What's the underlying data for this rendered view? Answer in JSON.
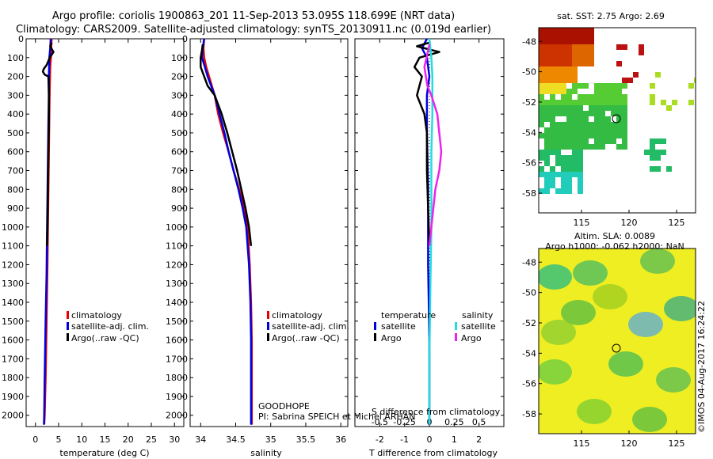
{
  "header": {
    "title_line1": "Argo profile: coriolis 1900863_201 11-Sep-2013 53.095S 118.699E (NRT data)",
    "title_line2": "Climatology: CARS2009. Satellite-adjusted climatology: synTS_20130911.nc (0.019d earlier)"
  },
  "annotations": {
    "goodhope": "GOODHOPE",
    "pi": "PI: Sabrina SPEICH et Michel ARHAN",
    "credit": "©IMOS 04-Aug-2017 16:24:22"
  },
  "colors": {
    "climatology": "#e60000",
    "satellite": "#0000dd",
    "argo": "#000000",
    "satellite_salinity": "#22dddd",
    "argo_salinity": "#ee22ee"
  },
  "chart_data": [
    {
      "type": "line",
      "id": "temperature",
      "xlabel": "temperature (deg C)",
      "ylabel": "",
      "xlim": [
        -2,
        32
      ],
      "ylim": [
        2060,
        0
      ],
      "xticks": [
        0,
        5,
        10,
        15,
        20,
        25,
        30
      ],
      "yticks": [
        0,
        100,
        200,
        300,
        400,
        500,
        600,
        700,
        800,
        900,
        1000,
        1100,
        1200,
        1300,
        1400,
        1500,
        1600,
        1700,
        1800,
        1900,
        2000
      ],
      "legend": [
        "climatology",
        "satellite-adj. clim.",
        "Argo(..raw -QC)"
      ],
      "legend_placement": "bottom-center",
      "series": [
        {
          "name": "climatology",
          "color": "#e60000",
          "points": [
            [
              3.5,
              0
            ],
            [
              3.4,
              50
            ],
            [
              3.4,
              80
            ],
            [
              3.2,
              150
            ],
            [
              3.1,
              250
            ],
            [
              3.0,
              400
            ],
            [
              2.9,
              600
            ],
            [
              2.8,
              800
            ],
            [
              2.7,
              1000
            ],
            [
              2.6,
              1200
            ],
            [
              2.4,
              1500
            ],
            [
              2.2,
              1800
            ],
            [
              2.0,
              2000
            ],
            [
              1.9,
              2050
            ]
          ]
        },
        {
          "name": "satellite-adj. clim.",
          "color": "#0000dd",
          "points": [
            [
              3.3,
              0
            ],
            [
              3.2,
              50
            ],
            [
              3.0,
              100
            ],
            [
              2.9,
              200
            ],
            [
              2.9,
              300
            ],
            [
              2.8,
              450
            ],
            [
              2.7,
              650
            ],
            [
              2.6,
              850
            ],
            [
              2.5,
              1050
            ],
            [
              2.4,
              1250
            ],
            [
              2.2,
              1500
            ],
            [
              2.0,
              1800
            ],
            [
              1.9,
              2000
            ],
            [
              1.85,
              2050
            ]
          ]
        },
        {
          "name": "Argo(..raw -QC)",
          "color": "#000000",
          "points": [
            [
              3.5,
              20
            ],
            [
              3.2,
              40
            ],
            [
              3.9,
              70
            ],
            [
              3.1,
              100
            ],
            [
              2.4,
              140
            ],
            [
              1.8,
              160
            ],
            [
              1.6,
              175
            ],
            [
              2.0,
              190
            ],
            [
              2.8,
              200
            ],
            [
              2.9,
              300
            ],
            [
              2.9,
              450
            ],
            [
              2.8,
              600
            ],
            [
              2.7,
              800
            ],
            [
              2.6,
              1000
            ],
            [
              2.5,
              1100
            ]
          ]
        }
      ]
    },
    {
      "type": "line",
      "id": "salinity",
      "xlabel": "salinity",
      "xlim": [
        33.85,
        36.1
      ],
      "ylim": [
        2060,
        0
      ],
      "xticks": [
        34,
        34.5,
        35,
        35.5,
        36
      ],
      "legend": [
        "climatology",
        "satellite-adj. clim.",
        "Argo(..raw -QC)"
      ],
      "legend_placement": "bottom-center",
      "series": [
        {
          "name": "climatology",
          "color": "#e60000",
          "points": [
            [
              34.05,
              0
            ],
            [
              34.04,
              50
            ],
            [
              34.05,
              100
            ],
            [
              34.08,
              150
            ],
            [
              34.12,
              200
            ],
            [
              34.16,
              250
            ],
            [
              34.2,
              300
            ],
            [
              34.25,
              400
            ],
            [
              34.32,
              500
            ],
            [
              34.4,
              600
            ],
            [
              34.47,
              700
            ],
            [
              34.55,
              800
            ],
            [
              34.62,
              900
            ],
            [
              34.67,
              1000
            ],
            [
              34.7,
              1200
            ],
            [
              34.72,
              1400
            ],
            [
              34.73,
              1600
            ],
            [
              34.73,
              1800
            ],
            [
              34.73,
              2050
            ]
          ]
        },
        {
          "name": "satellite-adj. clim.",
          "color": "#0000dd",
          "points": [
            [
              34.05,
              0
            ],
            [
              34.03,
              50
            ],
            [
              34.02,
              100
            ],
            [
              34.06,
              150
            ],
            [
              34.1,
              200
            ],
            [
              34.15,
              250
            ],
            [
              34.2,
              300
            ],
            [
              34.27,
              400
            ],
            [
              34.34,
              500
            ],
            [
              34.4,
              600
            ],
            [
              34.47,
              700
            ],
            [
              34.54,
              800
            ],
            [
              34.6,
              900
            ],
            [
              34.65,
              1000
            ],
            [
              34.69,
              1200
            ],
            [
              34.71,
              1400
            ],
            [
              34.72,
              1600
            ],
            [
              34.72,
              1800
            ],
            [
              34.72,
              2050
            ]
          ]
        },
        {
          "name": "Argo(..raw -QC)",
          "color": "#000000",
          "points": [
            [
              34.03,
              30
            ],
            [
              34.02,
              60
            ],
            [
              34.0,
              100
            ],
            [
              34.0,
              150
            ],
            [
              34.05,
              200
            ],
            [
              34.1,
              250
            ],
            [
              34.2,
              300
            ],
            [
              34.3,
              400
            ],
            [
              34.38,
              500
            ],
            [
              34.45,
              600
            ],
            [
              34.52,
              700
            ],
            [
              34.58,
              800
            ],
            [
              34.64,
              900
            ],
            [
              34.69,
              1000
            ],
            [
              34.72,
              1100
            ]
          ]
        }
      ]
    },
    {
      "type": "line",
      "id": "difference",
      "xlabel": "T difference from climatology",
      "x2label": "S difference from climatology",
      "xlim": [
        -3,
        3
      ],
      "ylim": [
        2060,
        0
      ],
      "xticks": [
        -2,
        -1,
        0,
        1,
        2
      ],
      "x2ticks": [
        -0.5,
        -0.25,
        0,
        0.25,
        0.5
      ],
      "legend_temperature_title": "temperature",
      "legend_salinity_title": "salinity",
      "legend_temperature": [
        "satellite",
        "Argo"
      ],
      "legend_salinity": [
        "satellite",
        "Argo"
      ],
      "legend_placement": "bottom-center",
      "series": [
        {
          "name": "satellite",
          "group": "temperature",
          "color": "#0000dd",
          "points": [
            [
              -0.1,
              0
            ],
            [
              -0.3,
              50
            ],
            [
              -0.1,
              100
            ],
            [
              0.0,
              200
            ],
            [
              -0.1,
              300
            ],
            [
              -0.1,
              500
            ],
            [
              -0.05,
              800
            ],
            [
              -0.05,
              1200
            ],
            [
              0.0,
              1600
            ],
            [
              0.0,
              2050
            ]
          ]
        },
        {
          "name": "Argo",
          "group": "temperature",
          "color": "#000000",
          "points": [
            [
              0.0,
              20
            ],
            [
              -0.5,
              40
            ],
            [
              0.4,
              70
            ],
            [
              -0.4,
              100
            ],
            [
              -0.6,
              150
            ],
            [
              -0.3,
              200
            ],
            [
              -0.5,
              300
            ],
            [
              -0.2,
              400
            ],
            [
              -0.1,
              500
            ],
            [
              -0.1,
              700
            ],
            [
              -0.05,
              900
            ],
            [
              0.0,
              1100
            ]
          ]
        },
        {
          "name": "satellite",
          "group": "salinity",
          "color": "#22dddd",
          "points": [
            [
              0.0,
              0
            ],
            [
              0.02,
              100
            ],
            [
              0.03,
              200
            ],
            [
              0.03,
              400
            ],
            [
              0.02,
              600
            ],
            [
              0.02,
              800
            ],
            [
              0.02,
              1000
            ],
            [
              0.01,
              1300
            ],
            [
              0.0,
              1700
            ],
            [
              0.0,
              2050
            ]
          ]
        },
        {
          "name": "Argo",
          "group": "salinity",
          "color": "#ee22ee",
          "points": [
            [
              0.0,
              30
            ],
            [
              -0.02,
              80
            ],
            [
              -0.05,
              150
            ],
            [
              -0.02,
              250
            ],
            [
              0.02,
              300
            ],
            [
              0.08,
              400
            ],
            [
              0.1,
              500
            ],
            [
              0.12,
              600
            ],
            [
              0.1,
              700
            ],
            [
              0.06,
              800
            ],
            [
              0.04,
              900
            ],
            [
              0.02,
              1000
            ],
            [
              0.0,
              1100
            ]
          ]
        }
      ]
    },
    {
      "type": "heatmap",
      "id": "sst-map",
      "title": "sat. SST: 2.75 Argo: 2.69",
      "xlim": [
        110.5,
        127
      ],
      "ylim": [
        -59.3,
        -47.1
      ],
      "xticks": [
        115,
        120,
        125
      ],
      "yticks": [
        -48,
        -50,
        -52,
        -54,
        -56,
        -58
      ],
      "argo_position": [
        118.699,
        -53.095
      ]
    },
    {
      "type": "heatmap",
      "id": "sla-map",
      "title": "Altim. SLA: 0.0089",
      "subtitle": "Argo h1000: -0.062 h2000: NaN",
      "xlim": [
        110.5,
        127
      ],
      "ylim": [
        -59.3,
        -47.1
      ],
      "xticks": [
        115,
        120,
        125
      ],
      "yticks": [
        -48,
        -50,
        -52,
        -54,
        -56,
        -58
      ],
      "argo_position": [
        118.699,
        -53.095
      ]
    }
  ]
}
